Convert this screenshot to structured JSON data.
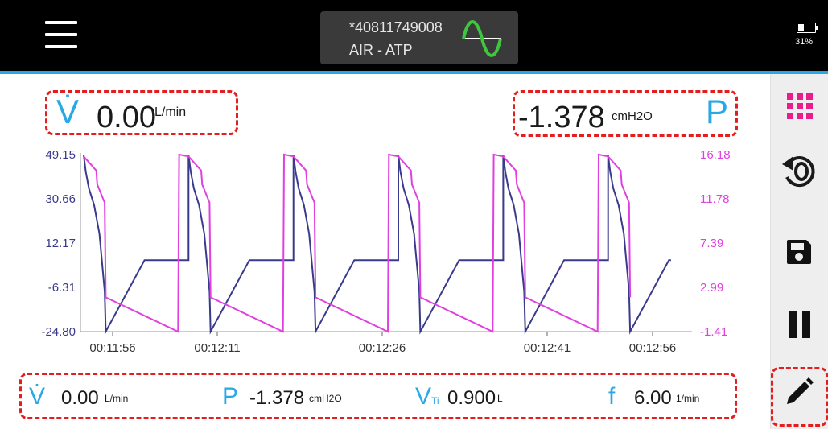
{
  "header": {
    "device_id": "*40811749008",
    "device_mode": "AIR - ATP",
    "battery": "31%",
    "accent_color": "#29a8e6"
  },
  "top_readout": {
    "flow_symbol": "V̇",
    "flow_value": "0.00",
    "flow_unit": "L/min",
    "pressure_value": "-1.378",
    "pressure_unit": "cmH2O",
    "pressure_symbol": "P"
  },
  "chart_data": {
    "type": "line",
    "x_ticks": [
      "00:11:56",
      "00:12:11",
      "00:12:26",
      "00:12:41",
      "00:12:56"
    ],
    "left_axis": {
      "ticks": [
        "49.15",
        "30.66",
        "12.17",
        "-6.31",
        "-24.80"
      ],
      "range": [
        -24.8,
        49.15
      ],
      "color": "#3a3a8c"
    },
    "right_axis": {
      "ticks": [
        "16.18",
        "11.78",
        "7.39",
        "2.99",
        "-1.41"
      ],
      "range": [
        -1.41,
        16.18
      ],
      "color": "#e040e0"
    },
    "series": [
      {
        "axis": "left",
        "color": "#3a3a8c",
        "period": 10,
        "t": [
          0,
          0.2,
          0.5,
          1.0,
          1.5,
          2.0,
          2.1,
          5.8,
          6.0,
          10
        ],
        "values": [
          49,
          42,
          35,
          28,
          16,
          -8,
          -24.8,
          5,
          5,
          5
        ]
      },
      {
        "axis": "right",
        "color": "#e040e0",
        "period": 10,
        "t": [
          0,
          1.2,
          1.3,
          2.0,
          2.1,
          9.0,
          9.1
        ],
        "values": [
          16.0,
          14.6,
          13.2,
          11.4,
          2.0,
          -1.41,
          16.18
        ]
      }
    ]
  },
  "bottom_readout": {
    "flow_symbol": "V̇",
    "flow_value": "0.00",
    "flow_unit": "L/min",
    "pressure_symbol": "P",
    "pressure_value": "-1.378",
    "pressure_unit": "cmH2O",
    "volume_symbol": "V",
    "volume_sub": "Ti",
    "volume_value": "0.900",
    "volume_unit": "L",
    "freq_symbol": "f",
    "freq_value": "6.00",
    "freq_unit": "1/min"
  },
  "side_icons": [
    "grid-icon",
    "zero-icon",
    "save-icon",
    "pause-icon",
    "edit-icon"
  ],
  "colors": {
    "grid_icon": "#e91e8c",
    "highlight": "#e41e1e",
    "symbol": "#29a8e6"
  }
}
